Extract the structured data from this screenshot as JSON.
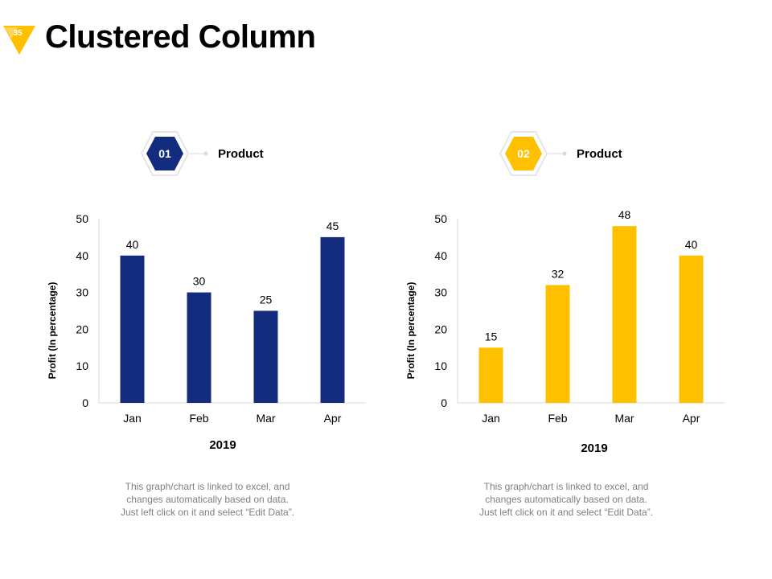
{
  "page": {
    "slide_number": "35",
    "title": "Clustered Column",
    "accent": "#FFC000",
    "brand_blue": "#142C7E"
  },
  "panels": [
    {
      "badge": "01",
      "badge_color": "#142C7E",
      "product_label": "Product",
      "note_lines": [
        "This graph/chart is linked to excel, and",
        "changes automatically based on data.",
        "Just left click on it and select “Edit Data”."
      ]
    },
    {
      "badge": "02",
      "badge_color": "#FFC000",
      "product_label": "Product",
      "note_lines": [
        "This graph/chart is linked to excel, and",
        "changes automatically based on data.",
        "Just left click on it and select “Edit Data”."
      ]
    }
  ],
  "chart_data": [
    {
      "type": "bar",
      "categories": [
        "Jan",
        "Feb",
        "Mar",
        "Apr"
      ],
      "series": [
        {
          "name": "Product 01",
          "values": [
            40,
            30,
            25,
            45
          ],
          "color": "#142C7E"
        }
      ],
      "ylabel": "Profit  (In percentage)",
      "xlabel": "2019",
      "ylim": [
        0,
        50
      ],
      "yticks": [
        0,
        10,
        20,
        30,
        40,
        50
      ],
      "grid": false
    },
    {
      "type": "bar",
      "categories": [
        "Jan",
        "Feb",
        "Mar",
        "Apr"
      ],
      "series": [
        {
          "name": "Product 02",
          "values": [
            15,
            32,
            48,
            40
          ],
          "color": "#FFC000"
        }
      ],
      "ylabel": "Profit  (In percentage)",
      "xlabel": "2019",
      "ylim": [
        0,
        50
      ],
      "yticks": [
        0,
        10,
        20,
        30,
        40,
        50
      ],
      "grid": false
    }
  ]
}
